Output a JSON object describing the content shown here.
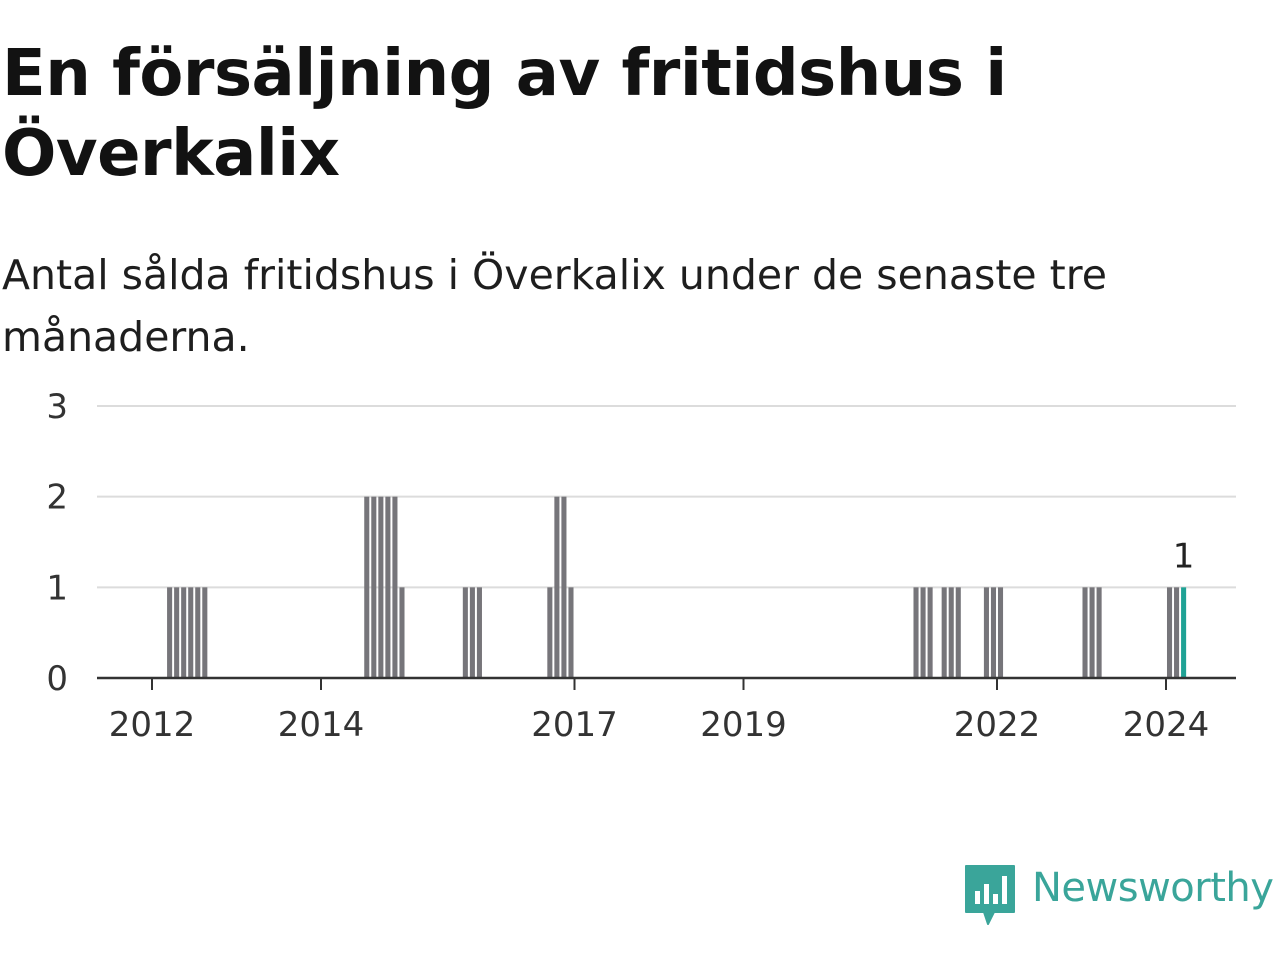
{
  "header": {
    "title": "En försäljning av fritidshus i Överkalix",
    "subtitle": "Antal sålda fritidshus i Överkalix under de senaste tre månaderna."
  },
  "brand": {
    "name": "Newsworthy",
    "icon": "newsworthy-bar-chart-logo-icon",
    "color": "#3aa59a"
  },
  "chart_data": {
    "type": "bar",
    "ylim": [
      0,
      3
    ],
    "yticks": [
      "0",
      "1",
      "2",
      "3"
    ],
    "xticks": [
      "2012",
      "2014",
      "2017",
      "2019",
      "2022",
      "2024"
    ],
    "grid": true,
    "bar_color": "#76757a",
    "highlight_color": "#1fa295",
    "last_value_label": "1",
    "x": [
      "2012-03",
      "2012-04",
      "2012-05",
      "2012-06",
      "2012-07",
      "2012-08",
      "2014-07",
      "2014-08",
      "2014-09",
      "2014-10",
      "2014-11",
      "2014-12",
      "2015-09",
      "2015-10",
      "2015-11",
      "2016-09",
      "2016-10",
      "2016-11",
      "2016-12",
      "2021-01",
      "2021-02",
      "2021-03",
      "2021-05",
      "2021-06",
      "2021-07",
      "2021-11",
      "2021-12",
      "2022-01",
      "2023-01",
      "2023-02",
      "2023-03",
      "2024-01",
      "2024-02",
      "2024-03"
    ],
    "values": [
      1,
      1,
      1,
      1,
      1,
      1,
      2,
      2,
      2,
      2,
      2,
      1,
      1,
      1,
      1,
      1,
      2,
      2,
      1,
      1,
      1,
      1,
      1,
      1,
      1,
      1,
      1,
      1,
      1,
      1,
      1,
      1,
      1,
      1
    ],
    "highlight_x": "2024-03"
  }
}
